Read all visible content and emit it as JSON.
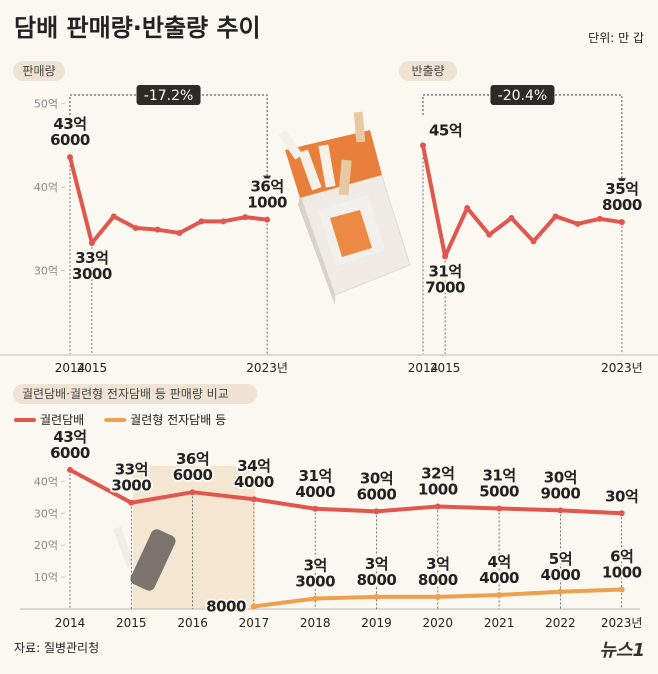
{
  "title": "담배 판매량·반출량 추이",
  "unit": "단위: 만 갑",
  "source": "자료: 질병관리청",
  "logo": "뉴스1",
  "chart_data": [
    {
      "type": "line",
      "title": "판매량",
      "annotation": "-17.2%",
      "color": "#e0574f",
      "categories": [
        "2014",
        "2015",
        null,
        null,
        null,
        null,
        null,
        null,
        null,
        "2023년"
      ],
      "values": [
        43.6,
        33.3,
        36.5,
        35.1,
        34.9,
        34.5,
        35.9,
        35.9,
        36.4,
        36.1
      ],
      "value_labels": [
        "43억 6000",
        "33억 3000",
        null,
        null,
        null,
        null,
        null,
        null,
        null,
        "36억 1000"
      ],
      "ylim": [
        20,
        52
      ],
      "yticks": [
        {
          "value": 50,
          "label": "50억"
        },
        {
          "value": 40,
          "label": "40억"
        },
        {
          "value": 30,
          "label": "30억"
        }
      ]
    },
    {
      "type": "line",
      "title": "반출량",
      "annotation": "-20.4%",
      "color": "#e0574f",
      "categories": [
        "2014",
        "2015",
        null,
        null,
        null,
        null,
        null,
        null,
        null,
        "2023년"
      ],
      "values": [
        45.0,
        31.7,
        37.5,
        34.3,
        36.3,
        33.5,
        36.5,
        35.6,
        36.2,
        35.8
      ],
      "value_labels": [
        "45억",
        "31억 7000",
        null,
        null,
        null,
        null,
        null,
        null,
        null,
        "35억 8000"
      ],
      "ylim": [
        20,
        52
      ]
    },
    {
      "type": "line",
      "title": "궐련담배·궐련형 전자담배 등 판매량 비교",
      "categories": [
        "2014",
        "2015",
        "2016",
        "2017",
        "2018",
        "2019",
        "2020",
        "2021",
        "2022",
        "2023년"
      ],
      "series": [
        {
          "name": "궐련담배",
          "color": "#e0574f",
          "values": [
            43.6,
            33.3,
            36.6,
            34.4,
            31.4,
            30.6,
            32.1,
            31.5,
            30.9,
            30
          ],
          "value_labels": [
            "43억 6000",
            "33억 3000",
            "36억 6000",
            "34억 4000",
            "31억 4000",
            "30억 6000",
            "32억 1000",
            "31억 5000",
            "30억 9000",
            "30억"
          ]
        },
        {
          "name": "궐련형 전자담배 등",
          "color": "#eda04e",
          "values": [
            null,
            null,
            null,
            0.8,
            3.3,
            3.8,
            3.8,
            4.4,
            5.4,
            6.1
          ],
          "value_labels": [
            null,
            null,
            null,
            "8000",
            "3억 3000",
            "3억 8000",
            "3억 8000",
            "4억 4000",
            "5억 4000",
            "6억 1000"
          ]
        }
      ],
      "ylim": [
        0,
        47
      ],
      "yticks": [
        {
          "value": 40,
          "label": "40억"
        },
        {
          "value": 30,
          "label": "30억"
        },
        {
          "value": 20,
          "label": "20억"
        },
        {
          "value": 10,
          "label": "10억"
        }
      ]
    }
  ]
}
